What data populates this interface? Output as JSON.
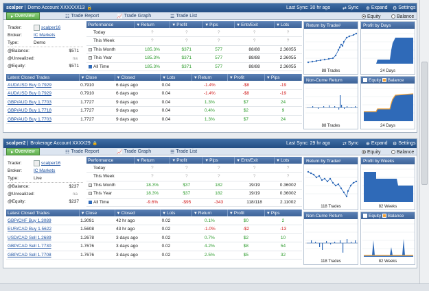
{
  "panels": [
    {
      "title": "scalper",
      "account": "Demo Account XXXXXX13",
      "last_sync": "Last Sync: 30 hr ago",
      "buttons": {
        "sync": "Sync",
        "expand": "Expand",
        "settings": "Settings"
      },
      "tabs": {
        "overview": "Overview",
        "trade_report": "Trade Report",
        "trade_graph": "Trade Graph",
        "trade_list": "Trade List"
      },
      "mode": {
        "equity": "Equity",
        "balance": "Balance",
        "selected": "Equity"
      },
      "info": {
        "trader_label": "Trader:",
        "trader": "scalper16",
        "broker_label": "Broker:",
        "broker": "IC Markets",
        "type_label": "Type:",
        "type": "Demo",
        "balance_label": "@Balance:",
        "balance": "$571",
        "unrealized_label": "@Unrealized:",
        "unrealized": "na",
        "equity_label": "@Equity:",
        "equity": "$571"
      },
      "perf_headers": [
        "Performance",
        "Return",
        "Profit",
        "Pips",
        "Entr/Exit",
        "Lots"
      ],
      "perf_rows": [
        {
          "period": "Today",
          "ret": "?",
          "profit": "?",
          "pips": "?",
          "entr": "?",
          "lots": "?"
        },
        {
          "period": "This Week",
          "ret": "?",
          "profit": "?",
          "pips": "?",
          "entr": "?",
          "lots": "?"
        },
        {
          "period": "This Month",
          "ret": "185.3%",
          "profit": "$371",
          "pips": "577",
          "entr": "88/88",
          "lots": "2.36055"
        },
        {
          "period": "This Year",
          "ret": "185.3%",
          "profit": "$371",
          "pips": "577",
          "entr": "88/88",
          "lots": "2.36055"
        },
        {
          "period": "All Time",
          "ret": "185.3%",
          "profit": "$371",
          "pips": "577",
          "entr": "88/88",
          "lots": "2.36055"
        }
      ],
      "trade_headers": [
        "Latest Closed Trades",
        "Close",
        "Closed",
        "Lots",
        "Return",
        "Profit",
        "Pips"
      ],
      "trades": [
        {
          "name": "AUD/USD Buy 0.7929",
          "close": "0.7910",
          "closed": "6 days ago",
          "lots": "0.04",
          "ret": "-1.4%",
          "profit": "-$8",
          "pips": "-19"
        },
        {
          "name": "AUD/USD Buy 0.7929",
          "close": "0.7910",
          "closed": "6 days ago",
          "lots": "0.04",
          "ret": "-1.4%",
          "profit": "-$8",
          "pips": "-19"
        },
        {
          "name": "GBP/AUD Buy 1.7703",
          "close": "1.7727",
          "closed": "9 days ago",
          "lots": "0.04",
          "ret": "1.3%",
          "profit": "$7",
          "pips": "24"
        },
        {
          "name": "GBP/AUD Buy 1.7718",
          "close": "1.7727",
          "closed": "9 days ago",
          "lots": "0.04",
          "ret": "0.4%",
          "profit": "$2",
          "pips": "9"
        },
        {
          "name": "GBP/AUD Buy 1.7703",
          "close": "1.7727",
          "closed": "9 days ago",
          "lots": "0.04",
          "ret": "1.3%",
          "profit": "$7",
          "pips": "24"
        }
      ],
      "charts": {
        "c1_title": "Return by Trade#",
        "c1_foot": "88 Trades",
        "c2_title": "Profit by Days",
        "c2_foot": "24 Days",
        "c3_title": "Non-Cume Return",
        "c3_foot": "88 Trades",
        "c4_equity": "Equity",
        "c4_balance": "Balance",
        "c4_foot": "24 Days"
      }
    },
    {
      "title": "scalper2",
      "account": "Brokerage Account XXXX29",
      "last_sync": "Last Sync: 29 hr ago",
      "buttons": {
        "sync": "Sync",
        "expand": "Expand",
        "settings": "Settings"
      },
      "tabs": {
        "overview": "Overview",
        "trade_report": "Trade Report",
        "trade_graph": "Trade Graph",
        "trade_list": "Trade List"
      },
      "mode": {
        "equity": "Equity",
        "balance": "Balance",
        "selected": "Equity"
      },
      "info": {
        "trader_label": "Trader:",
        "trader": "scalper16",
        "broker_label": "Broker:",
        "broker": "IC Markets",
        "type_label": "Type:",
        "type": "Live",
        "balance_label": "@Balance:",
        "balance": "$237",
        "unrealized_label": "@Unrealized:",
        "unrealized": "na",
        "equity_label": "@Equity:",
        "equity": "$237"
      },
      "perf_headers": [
        "Performance",
        "Return",
        "Profit",
        "Pips",
        "Entr/Exit",
        "Lots"
      ],
      "perf_rows": [
        {
          "period": "Today",
          "ret": "?",
          "profit": "?",
          "pips": "?",
          "entr": "?",
          "lots": "?"
        },
        {
          "period": "This Week",
          "ret": "?",
          "profit": "?",
          "pips": "?",
          "entr": "?",
          "lots": "?"
        },
        {
          "period": "This Month",
          "ret": "18.3%",
          "profit": "$37",
          "pips": "182",
          "entr": "19/19",
          "lots": "0.36002"
        },
        {
          "period": "This Year",
          "ret": "18.3%",
          "profit": "$37",
          "pips": "182",
          "entr": "19/19",
          "lots": "0.36002"
        },
        {
          "period": "All Time",
          "ret": "-9.6%",
          "profit": "-$95",
          "pips": "-343",
          "entr": "118/118",
          "lots": "2.11002"
        }
      ],
      "trade_headers": [
        "Latest Closed Trades",
        "Close",
        "Closed",
        "Lots",
        "Return",
        "Profit",
        "Pips"
      ],
      "trades": [
        {
          "name": "GBP/CHF Buy 1.3089",
          "close": "1.3091",
          "closed": "42 hr ago",
          "lots": "0.02",
          "ret": "0.1%",
          "profit": "$0",
          "pips": "2"
        },
        {
          "name": "EUR/CAD Buy 1.5622",
          "close": "1.5608",
          "closed": "43 hr ago",
          "lots": "0.02",
          "ret": "-1.0%",
          "profit": "-$2",
          "pips": "-13"
        },
        {
          "name": "USD/CAD Sell 1.2689",
          "close": "1.2678",
          "closed": "3 days ago",
          "lots": "0.02",
          "ret": "0.7%",
          "profit": "$2",
          "pips": "10"
        },
        {
          "name": "GBP/CAD Sell 1.7730",
          "close": "1.7676",
          "closed": "3 days ago",
          "lots": "0.02",
          "ret": "4.2%",
          "profit": "$8",
          "pips": "54"
        },
        {
          "name": "GBP/CAD Sell 1.7708",
          "close": "1.7676",
          "closed": "3 days ago",
          "lots": "0.02",
          "ret": "2.5%",
          "profit": "$5",
          "pips": "32"
        }
      ],
      "charts": {
        "c1_title": "Return by Trade#",
        "c1_foot": "118 Trades",
        "c2_title": "Profit by Weeks",
        "c2_foot": "82 Weeks",
        "c3_title": "Non-Cume Return",
        "c3_foot": "118 Trades",
        "c4_equity": "Equity",
        "c4_balance": "Balance",
        "c4_foot": "82 Weeks"
      }
    }
  ]
}
